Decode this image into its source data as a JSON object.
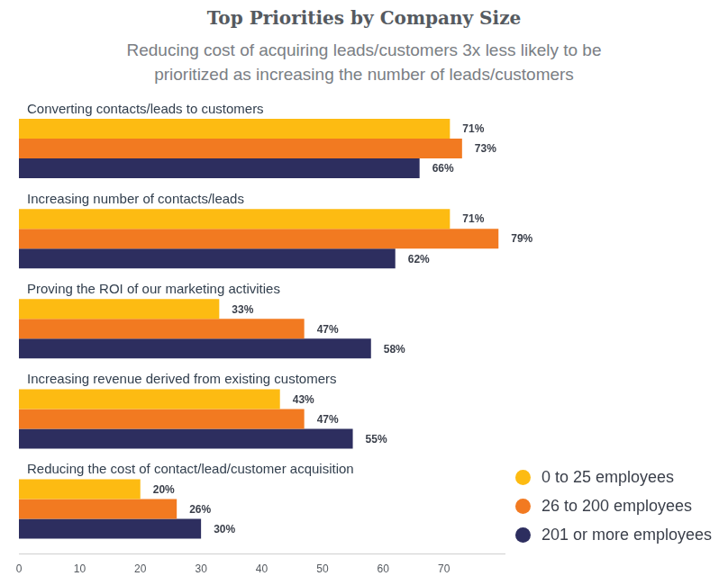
{
  "chart_data": {
    "type": "bar",
    "title": "Top Priorities by Company Size",
    "subtitle": "Reducing cost of acquiring leads/customers 3x less likely to be prioritized as increasing the number of leads/customers",
    "orientation": "horizontal",
    "categories": [
      "Converting contacts/leads to customers",
      "Increasing number of contacts/leads",
      "Proving the ROI of our marketing activities",
      "Increasing revenue derived from existing customers",
      "Reducing the cost of contact/lead/customer acquisition"
    ],
    "series": [
      {
        "name": "0 to 25 employees",
        "color": "#fdbb12",
        "values": [
          71,
          71,
          33,
          43,
          20
        ],
        "value_labels": [
          "71%",
          "71%",
          "33%",
          "43%",
          "20%"
        ]
      },
      {
        "name": "26 to 200 employees",
        "color": "#f27a21",
        "values": [
          73,
          79,
          47,
          47,
          26
        ],
        "value_labels": [
          "73%",
          "79%",
          "47%",
          "47%",
          "26%"
        ]
      },
      {
        "name": "201 or more employees",
        "color": "#2d2e5f",
        "values": [
          66,
          62,
          58,
          55,
          30
        ],
        "value_labels": [
          "66%",
          "62%",
          "58%",
          "55%",
          "30%"
        ]
      }
    ],
    "xlim": [
      0,
      80
    ],
    "xticks": [
      0,
      10,
      20,
      30,
      40,
      50,
      60,
      70
    ],
    "grid": false,
    "legend": "lower right",
    "data_labels": true
  }
}
